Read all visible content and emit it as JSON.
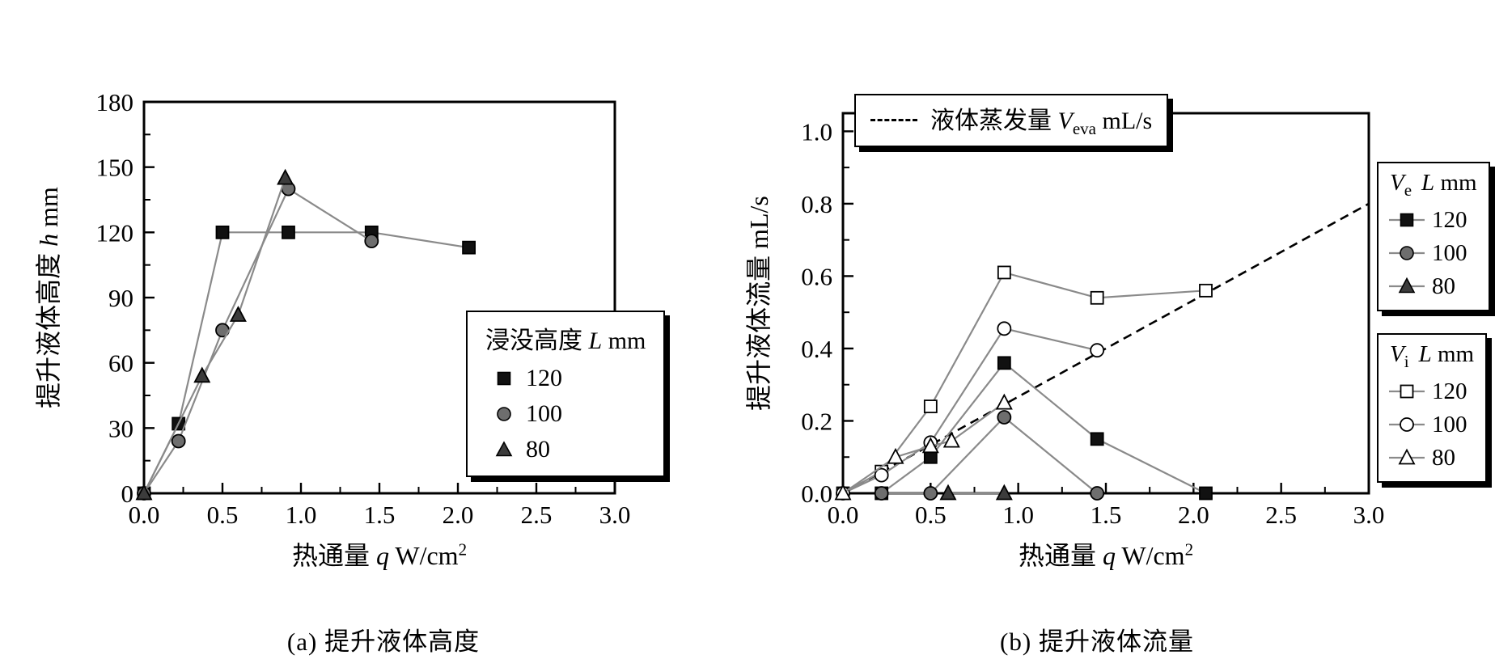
{
  "colors": {
    "axis": "#000000",
    "series_line": "#8a8a8a",
    "marker_black": "#111111",
    "marker_gray": "#6e6e6e",
    "marker_dark": "#3c3c3c",
    "background": "#ffffff"
  },
  "chart_data": [
    {
      "id": "a",
      "type": "line",
      "caption": "(a) 提升液体高度",
      "xlabel": {
        "pre": "热通量 ",
        "var": "q",
        "unit": " W/cm",
        "sup": "2"
      },
      "ylabel": {
        "pre": "提升液体高度 ",
        "var": "h",
        "unit": " mm"
      },
      "xlim": [
        0,
        3.0
      ],
      "ylim": [
        0,
        180
      ],
      "xticks": [
        0,
        0.5,
        1.0,
        1.5,
        2.0,
        2.5,
        3.0
      ],
      "xtick_labels": [
        "0.0",
        "0.5",
        "1.0",
        "1.5",
        "2.0",
        "2.5",
        "3.0"
      ],
      "yticks": [
        0,
        30,
        60,
        90,
        120,
        150,
        180
      ],
      "ytick_labels": [
        "0",
        "30",
        "60",
        "90",
        "120",
        "150",
        "180"
      ],
      "grid": false,
      "legend": {
        "position": "inside-right",
        "title_pre": "浸没高度 ",
        "title_var": "L",
        "title_unit": " mm",
        "items": [
          {
            "label": "120",
            "marker": "filled-square"
          },
          {
            "label": "100",
            "marker": "filled-circle"
          },
          {
            "label": "80",
            "marker": "filled-triangle"
          }
        ]
      },
      "series": [
        {
          "name": "L120",
          "label": "120",
          "marker": "square",
          "open": false,
          "color": "#111111",
          "line_color": "#8a8a8a",
          "points": [
            [
              0,
              0
            ],
            [
              0.22,
              32
            ],
            [
              0.5,
              120
            ],
            [
              0.92,
              120
            ],
            [
              1.45,
              120
            ],
            [
              2.07,
              113
            ]
          ]
        },
        {
          "name": "L100",
          "label": "100",
          "marker": "circle",
          "open": false,
          "color": "#6e6e6e",
          "line_color": "#8a8a8a",
          "points": [
            [
              0,
              0
            ],
            [
              0.22,
              24
            ],
            [
              0.5,
              75
            ],
            [
              0.92,
              140
            ],
            [
              1.45,
              116
            ]
          ]
        },
        {
          "name": "L80",
          "label": "80",
          "marker": "triangle",
          "open": false,
          "color": "#3c3c3c",
          "line_color": "#8a8a8a",
          "points": [
            [
              0,
              0
            ],
            [
              0.37,
              54
            ],
            [
              0.6,
              82
            ],
            [
              0.9,
              145
            ]
          ]
        }
      ]
    },
    {
      "id": "b",
      "type": "line",
      "caption": "(b) 提升液体流量",
      "xlabel": {
        "pre": "热通量 ",
        "var": "q",
        "unit": " W/cm",
        "sup": "2"
      },
      "ylabel": {
        "pre": "提升液体流量  mL/s"
      },
      "xlim": [
        0,
        3.0
      ],
      "ylim": [
        0,
        1.05
      ],
      "xticks": [
        0,
        0.5,
        1.0,
        1.5,
        2.0,
        2.5,
        3.0
      ],
      "xtick_labels": [
        "0.0",
        "0.5",
        "1.0",
        "1.5",
        "2.0",
        "2.5",
        "3.0"
      ],
      "yticks": [
        0,
        0.2,
        0.4,
        0.6,
        0.8,
        1.0
      ],
      "ytick_labels": [
        "0.0",
        "0.2",
        "0.4",
        "0.6",
        "0.8",
        "1.0"
      ],
      "grid": false,
      "eva_legend": {
        "pre": "液体蒸发量 ",
        "var": "V",
        "sub": "eva",
        "unit": " mL/s"
      },
      "legend_ve": {
        "title_var1": "V",
        "title_sub1": "e",
        "title_var2": "L",
        "title_unit": " mm",
        "items": [
          {
            "label": "120",
            "marker": "filled-square"
          },
          {
            "label": "100",
            "marker": "filled-circle"
          },
          {
            "label": "80",
            "marker": "filled-triangle"
          }
        ]
      },
      "legend_vi": {
        "title_var1": "V",
        "title_sub1": "i",
        "title_var2": "L",
        "title_unit": " mm",
        "items": [
          {
            "label": "120",
            "marker": "open-square"
          },
          {
            "label": "100",
            "marker": "open-circle"
          },
          {
            "label": "80",
            "marker": "open-triangle"
          }
        ]
      },
      "series": [
        {
          "name": "V_eva",
          "marker": "none",
          "dash": true,
          "line_color": "#000000",
          "line_width": 2.6,
          "points": [
            [
              0,
              0
            ],
            [
              3.0,
              0.8
            ]
          ]
        },
        {
          "name": "Ve_L120",
          "marker": "square",
          "open": false,
          "color": "#111111",
          "line_color": "#8a8a8a",
          "points": [
            [
              0.22,
              0
            ],
            [
              0.5,
              0.1
            ],
            [
              0.92,
              0.36
            ],
            [
              1.45,
              0.15
            ],
            [
              2.07,
              0
            ]
          ]
        },
        {
          "name": "Ve_L100",
          "marker": "circle",
          "open": false,
          "color": "#6e6e6e",
          "line_color": "#8a8a8a",
          "points": [
            [
              0.22,
              0
            ],
            [
              0.5,
              0
            ],
            [
              0.92,
              0.21
            ],
            [
              1.45,
              0
            ]
          ]
        },
        {
          "name": "Ve_L80",
          "marker": "triangle",
          "open": false,
          "color": "#3c3c3c",
          "line_color": "#8a8a8a",
          "points": [
            [
              0.6,
              0
            ],
            [
              0.92,
              0
            ]
          ]
        },
        {
          "name": "Vi_L120",
          "marker": "square",
          "open": true,
          "line_color": "#8a8a8a",
          "points": [
            [
              0,
              0
            ],
            [
              0.22,
              0.06
            ],
            [
              0.5,
              0.24
            ],
            [
              0.92,
              0.61
            ],
            [
              1.45,
              0.54
            ],
            [
              2.07,
              0.56
            ]
          ]
        },
        {
          "name": "Vi_L100",
          "marker": "circle",
          "open": true,
          "line_color": "#8a8a8a",
          "points": [
            [
              0,
              0
            ],
            [
              0.22,
              0.05
            ],
            [
              0.5,
              0.14
            ],
            [
              0.92,
              0.455
            ],
            [
              1.45,
              0.395
            ]
          ]
        },
        {
          "name": "Vi_L80",
          "marker": "triangle",
          "open": true,
          "line_color": "#8a8a8a",
          "points": [
            [
              0,
              0
            ],
            [
              0.3,
              0.1
            ],
            [
              0.5,
              0.13
            ],
            [
              0.62,
              0.145
            ],
            [
              0.92,
              0.25
            ]
          ]
        }
      ]
    }
  ]
}
